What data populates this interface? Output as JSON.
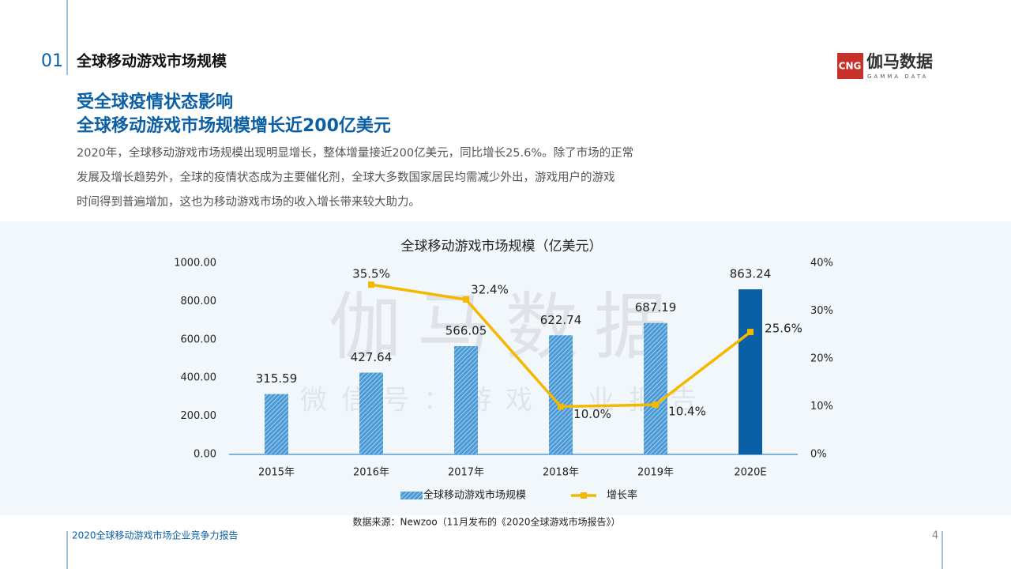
{
  "header": {
    "section_number": "01",
    "section_title": "全球移动游戏市场规模"
  },
  "logo": {
    "mark": "CNG",
    "name": "伽马数据",
    "subtitle": "GAMMA DATA"
  },
  "headline": [
    "受全球疫情状态影响",
    "全球移动游戏市场规模增长近200亿美元"
  ],
  "paragraph": [
    "2020年，全球移动游戏市场规模出现明显增长，整体增量接近200亿美元，同比增长25.6%。除了市场的正常",
    "发展及增长趋势外，全球的疫情状态成为主要催化剂，全球大多数国家居民均需减少外出，游戏用户的游戏",
    "时间得到普遍增加，这也为移动游戏市场的收入增长带来较大助力。"
  ],
  "watermark": [
    "伽马数据",
    "微信号：游戏企业报告"
  ],
  "chart_data": {
    "type": "combo",
    "title": "全球移动游戏市场规模（亿美元）",
    "categories": [
      "2015年",
      "2016年",
      "2017年",
      "2018年",
      "2019年",
      "2020E"
    ],
    "series": [
      {
        "name": "全球移动游戏市场规模",
        "type": "bar",
        "color": "#4a9ad6",
        "colors": [
          "#4a9ad6",
          "#4a9ad6",
          "#4a9ad6",
          "#4a9ad6",
          "#4a9ad6",
          "#0b5fa5"
        ],
        "hatched": [
          true,
          true,
          true,
          true,
          true,
          false
        ],
        "values": [
          315.59,
          427.64,
          566.05,
          622.74,
          687.19,
          863.24
        ]
      },
      {
        "name": "增长率",
        "type": "line",
        "axis": "y2",
        "color": "#f5b800",
        "values": [
          null,
          35.5,
          32.4,
          10.0,
          10.4,
          25.6
        ],
        "value_labels": [
          null,
          "35.5%",
          "32.4%",
          "10.0%",
          "10.4%",
          "25.6%"
        ]
      }
    ],
    "ylim": [
      0,
      1000
    ],
    "yticks": [
      {
        "value": 0,
        "label": "0.00"
      },
      {
        "value": 200,
        "label": "200.00"
      },
      {
        "value": 400,
        "label": "400.00"
      },
      {
        "value": 600,
        "label": "600.00"
      },
      {
        "value": 800,
        "label": "800.00"
      },
      {
        "value": 1000,
        "label": "1000.00"
      }
    ],
    "y2lim": [
      0,
      40
    ],
    "y2ticks": [
      {
        "value": 0,
        "label": "0%"
      },
      {
        "value": 10,
        "label": "10%"
      },
      {
        "value": 20,
        "label": "20%"
      },
      {
        "value": 30,
        "label": "30%"
      },
      {
        "value": 40,
        "label": "40%"
      }
    ],
    "grid": false
  },
  "source": "数据来源：Newzoo（11月发布的《2020全球游戏市场报告》）",
  "footer": {
    "report_title": "2020全球移动游戏市场企业竞争力报告",
    "page_number": "4"
  }
}
